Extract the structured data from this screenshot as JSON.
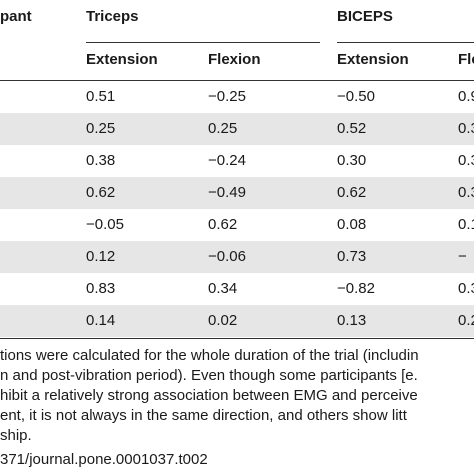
{
  "header": {
    "participant_fragment": "pant",
    "triceps": "Triceps",
    "biceps": "BICEPS",
    "triceps_extension": "Extension",
    "triceps_flexion": "Flexion",
    "biceps_extension": "Extension",
    "biceps_flexion_fragment": "Fle"
  },
  "rows": [
    {
      "tri_ext": "0.51",
      "tri_flex": "−0.25",
      "bic_ext": "−0.50",
      "bic_flex": "0.9"
    },
    {
      "tri_ext": "0.25",
      "tri_flex": "0.25",
      "bic_ext": "0.52",
      "bic_flex": "0.3"
    },
    {
      "tri_ext": "0.38",
      "tri_flex": "−0.24",
      "bic_ext": "0.30",
      "bic_flex": "0.3"
    },
    {
      "tri_ext": "0.62",
      "tri_flex": "−0.49",
      "bic_ext": "0.62",
      "bic_flex": "0.3"
    },
    {
      "tri_ext": "−0.05",
      "tri_flex": "0.62",
      "bic_ext": "0.08",
      "bic_flex": "0.1"
    },
    {
      "tri_ext": "0.12",
      "tri_flex": "−0.06",
      "bic_ext": "0.73",
      "bic_flex": "−"
    },
    {
      "tri_ext": "0.83",
      "tri_flex": "0.34",
      "bic_ext": "−0.82",
      "bic_flex": "0.3"
    },
    {
      "tri_ext": "0.14",
      "tri_flex": "0.02",
      "bic_ext": "0.13",
      "bic_flex": "0.2"
    }
  ],
  "footnote": {
    "line1": "tions were calculated for the whole duration of the trial (includin",
    "line2": "n and post-vibration period). Even though some participants [e.",
    "line3": "hibit a relatively strong association between EMG and perceive",
    "line4": "ent, it is not always in the same direction, and others show litt",
    "line5": "ship.",
    "doi": "371/journal.pone.0001037.t002"
  }
}
